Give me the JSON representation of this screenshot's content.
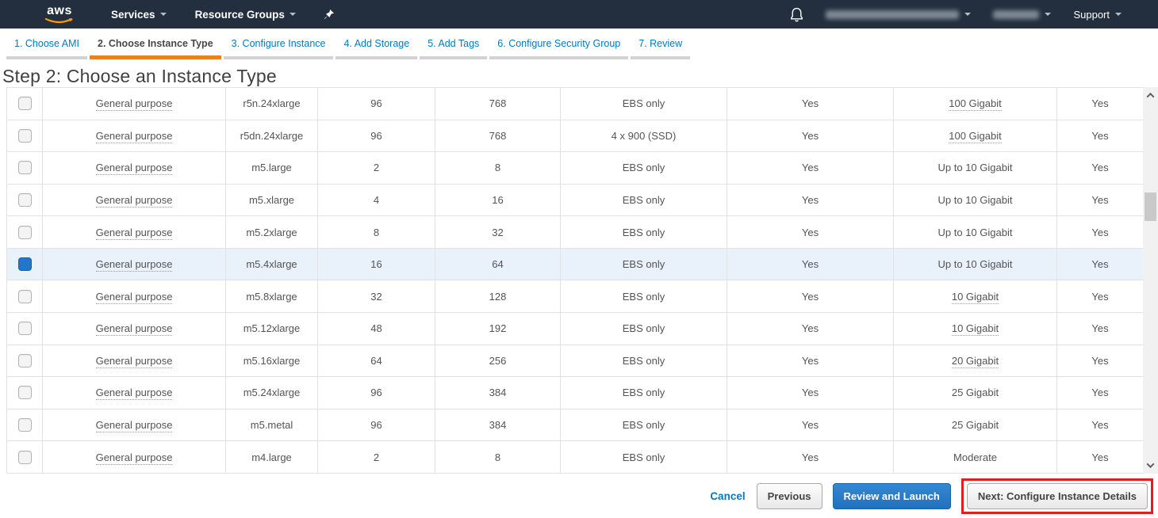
{
  "topnav": {
    "logo_text": "aws",
    "services_label": "Services",
    "resource_groups_label": "Resource Groups",
    "support_label": "Support",
    "account_redacted": true,
    "region_redacted": true
  },
  "tabs": [
    {
      "label": "1. Choose AMI",
      "active": false
    },
    {
      "label": "2. Choose Instance Type",
      "active": true
    },
    {
      "label": "3. Configure Instance",
      "active": false
    },
    {
      "label": "4. Add Storage",
      "active": false
    },
    {
      "label": "5. Add Tags",
      "active": false
    },
    {
      "label": "6. Configure Security Group",
      "active": false
    },
    {
      "label": "7. Review",
      "active": false
    }
  ],
  "page_title": "Step 2: Choose an Instance Type",
  "table": {
    "rows": [
      {
        "family": "General purpose",
        "type": "r5n.24xlarge",
        "vcpus": "96",
        "memory": "768",
        "storage": "EBS only",
        "ebs_optimized": "Yes",
        "network": "100 Gigabit",
        "network_dotted": true,
        "ipv6": "Yes",
        "selected": false
      },
      {
        "family": "General purpose",
        "type": "r5dn.24xlarge",
        "vcpus": "96",
        "memory": "768",
        "storage": "4 x 900 (SSD)",
        "ebs_optimized": "Yes",
        "network": "100 Gigabit",
        "network_dotted": true,
        "ipv6": "Yes",
        "selected": false
      },
      {
        "family": "General purpose",
        "type": "m5.large",
        "vcpus": "2",
        "memory": "8",
        "storage": "EBS only",
        "ebs_optimized": "Yes",
        "network": "Up to 10 Gigabit",
        "network_dotted": false,
        "ipv6": "Yes",
        "selected": false
      },
      {
        "family": "General purpose",
        "type": "m5.xlarge",
        "vcpus": "4",
        "memory": "16",
        "storage": "EBS only",
        "ebs_optimized": "Yes",
        "network": "Up to 10 Gigabit",
        "network_dotted": false,
        "ipv6": "Yes",
        "selected": false
      },
      {
        "family": "General purpose",
        "type": "m5.2xlarge",
        "vcpus": "8",
        "memory": "32",
        "storage": "EBS only",
        "ebs_optimized": "Yes",
        "network": "Up to 10 Gigabit",
        "network_dotted": false,
        "ipv6": "Yes",
        "selected": false
      },
      {
        "family": "General purpose",
        "type": "m5.4xlarge",
        "vcpus": "16",
        "memory": "64",
        "storage": "EBS only",
        "ebs_optimized": "Yes",
        "network": "Up to 10 Gigabit",
        "network_dotted": false,
        "ipv6": "Yes",
        "selected": true
      },
      {
        "family": "General purpose",
        "type": "m5.8xlarge",
        "vcpus": "32",
        "memory": "128",
        "storage": "EBS only",
        "ebs_optimized": "Yes",
        "network": "10 Gigabit",
        "network_dotted": true,
        "ipv6": "Yes",
        "selected": false
      },
      {
        "family": "General purpose",
        "type": "m5.12xlarge",
        "vcpus": "48",
        "memory": "192",
        "storage": "EBS only",
        "ebs_optimized": "Yes",
        "network": "10 Gigabit",
        "network_dotted": true,
        "ipv6": "Yes",
        "selected": false
      },
      {
        "family": "General purpose",
        "type": "m5.16xlarge",
        "vcpus": "64",
        "memory": "256",
        "storage": "EBS only",
        "ebs_optimized": "Yes",
        "network": "20 Gigabit",
        "network_dotted": true,
        "ipv6": "Yes",
        "selected": false
      },
      {
        "family": "General purpose",
        "type": "m5.24xlarge",
        "vcpus": "96",
        "memory": "384",
        "storage": "EBS only",
        "ebs_optimized": "Yes",
        "network": "25 Gigabit",
        "network_dotted": false,
        "ipv6": "Yes",
        "selected": false
      },
      {
        "family": "General purpose",
        "type": "m5.metal",
        "vcpus": "96",
        "memory": "384",
        "storage": "EBS only",
        "ebs_optimized": "Yes",
        "network": "25 Gigabit",
        "network_dotted": false,
        "ipv6": "Yes",
        "selected": false
      },
      {
        "family": "General purpose",
        "type": "m4.large",
        "vcpus": "2",
        "memory": "8",
        "storage": "EBS only",
        "ebs_optimized": "Yes",
        "network": "Moderate",
        "network_dotted": false,
        "ipv6": "Yes",
        "selected": false
      }
    ]
  },
  "footer": {
    "cancel_label": "Cancel",
    "previous_label": "Previous",
    "review_label": "Review and Launch",
    "next_label": "Next: Configure Instance Details"
  },
  "colors": {
    "navbar_bg": "#232f3e",
    "logo_orange": "#ff9900",
    "active_tab_orange": "#eb8021",
    "link_blue": "#0678bd",
    "selected_row_bg": "#e9f1fb",
    "checkbox_selected": "#2277cc",
    "primary_button_blue": "#2270bd",
    "annotation_red": "#de2020"
  }
}
